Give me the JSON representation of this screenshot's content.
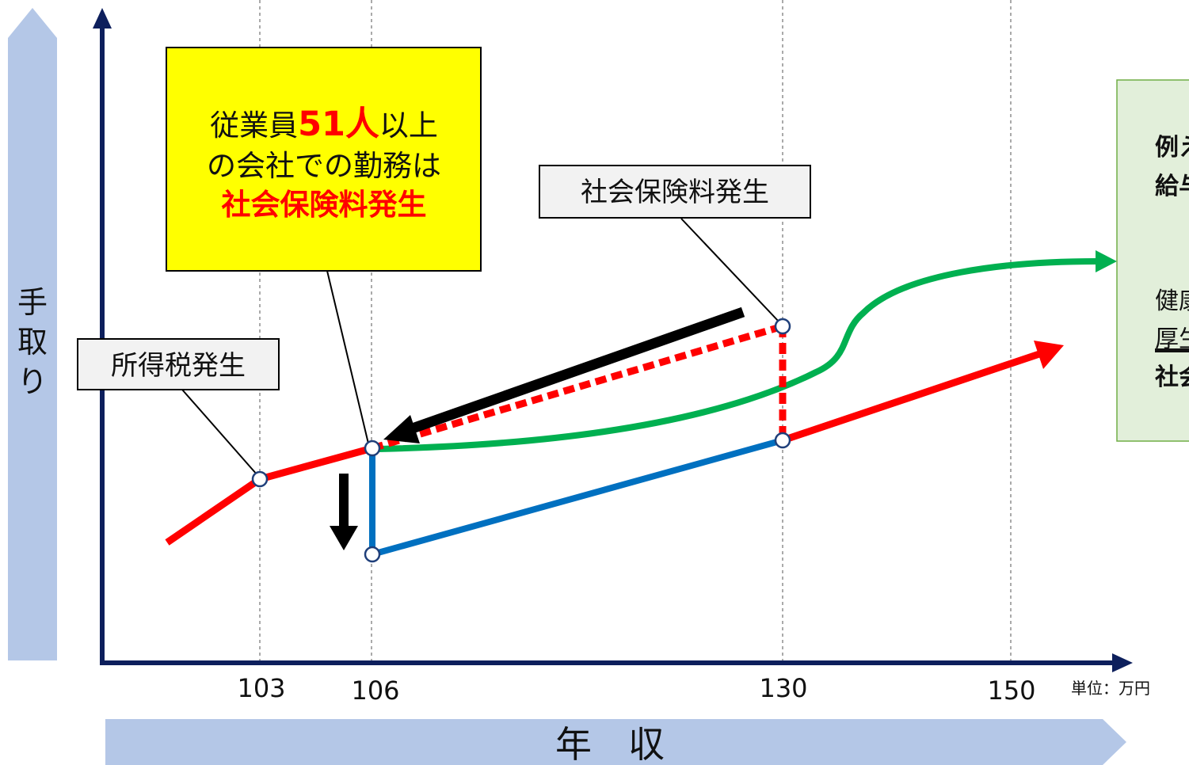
{
  "y_label": "手取り",
  "x_label": "年　収",
  "unit_label": "単位：万円",
  "x_ticks": [
    "103",
    "106",
    "130",
    "150"
  ],
  "callouts": {
    "income_tax": "所得税発生",
    "social_insurance": "社会保険料発生",
    "yellow": {
      "line1_a": "従業員",
      "line1_b": "51人",
      "line1_c": "以上",
      "line2": "の会社での勤務は",
      "line3": "社会保険料発生"
    }
  },
  "side_note": {
    "line1": "例え",
    "line2": "給与",
    "line3": "健康",
    "line4": "厚生",
    "line5": "社会"
  },
  "colors": {
    "axis": "#0d1f5c",
    "band": "#b4c7e7",
    "red": "#ff0000",
    "blue": "#0070c0",
    "green": "#00b050",
    "yellow_fill": "#ffff00",
    "note_fill": "#e2efda",
    "note_border": "#70ad47"
  }
}
